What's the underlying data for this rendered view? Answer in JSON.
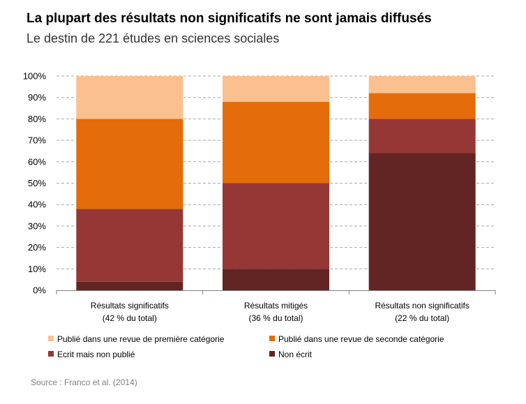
{
  "chart_data": {
    "type": "bar",
    "stacked": true,
    "title": "La plupart des résultats non significatifs ne sont jamais diffusés",
    "subtitle": "Le destin de 221 études en sciences sociales",
    "categories": [
      [
        "Résultats significatifs",
        "(42 % du total)"
      ],
      [
        "Résultats mitigés",
        "(36 % du total)"
      ],
      [
        "Résultats non significatifs",
        "(22 % du total)"
      ]
    ],
    "series": [
      {
        "name": "Non écrit",
        "color": "#632523",
        "values": [
          4,
          10,
          64
        ]
      },
      {
        "name": "Ecrit mais non publié",
        "color": "#953735",
        "values": [
          34,
          40,
          16
        ]
      },
      {
        "name": "Publié dans une revue de seconde catégorie",
        "color": "#e46c0a",
        "values": [
          42,
          38,
          12
        ]
      },
      {
        "name": "Publié dans une revue de première catégorie",
        "color": "#fac090",
        "values": [
          20,
          12,
          8
        ]
      }
    ],
    "legend_order": [
      3,
      2,
      1,
      0
    ],
    "yticks": [
      "0%",
      "10%",
      "20%",
      "30%",
      "40%",
      "50%",
      "60%",
      "70%",
      "80%",
      "90%",
      "100%"
    ],
    "ylim": [
      0,
      100
    ],
    "grid": true,
    "xlabel": "",
    "ylabel": ""
  },
  "source": "Source : Franco et al. (2014)"
}
